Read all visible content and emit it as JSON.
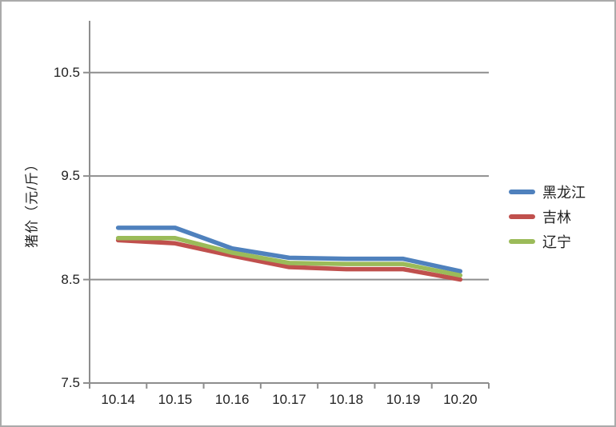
{
  "chart_data": {
    "type": "line",
    "title": "",
    "categories": [
      "10.14",
      "10.15",
      "10.16",
      "10.17",
      "10.18",
      "10.19",
      "10.20"
    ],
    "series": [
      {
        "name": "黑龙江",
        "color": "#4F81BD",
        "values": [
          9.0,
          9.0,
          8.8,
          8.71,
          8.7,
          8.7,
          8.58
        ]
      },
      {
        "name": "吉林",
        "color": "#C0504D",
        "values": [
          8.88,
          8.85,
          8.73,
          8.62,
          8.6,
          8.6,
          8.5
        ]
      },
      {
        "name": "辽宁",
        "color": "#9BBB59",
        "values": [
          8.9,
          8.9,
          8.76,
          8.66,
          8.65,
          8.65,
          8.54
        ]
      }
    ],
    "xlabel": "",
    "ylabel": "猪价（元/斤）",
    "ylim": [
      7.5,
      11.0
    ],
    "yticks": [
      7.5,
      8.5,
      9.5,
      10.5
    ],
    "ytick_labels": [
      "7.5",
      "8.5",
      "9.5",
      "10.5"
    ],
    "grid": true,
    "legend_position": "right"
  },
  "colors": {
    "gridline": "#8e8e8e",
    "axis": "#8e8e8e",
    "text": "#1f1f1f",
    "frame_border": "#aaaaaa",
    "background": "#ffffff"
  }
}
